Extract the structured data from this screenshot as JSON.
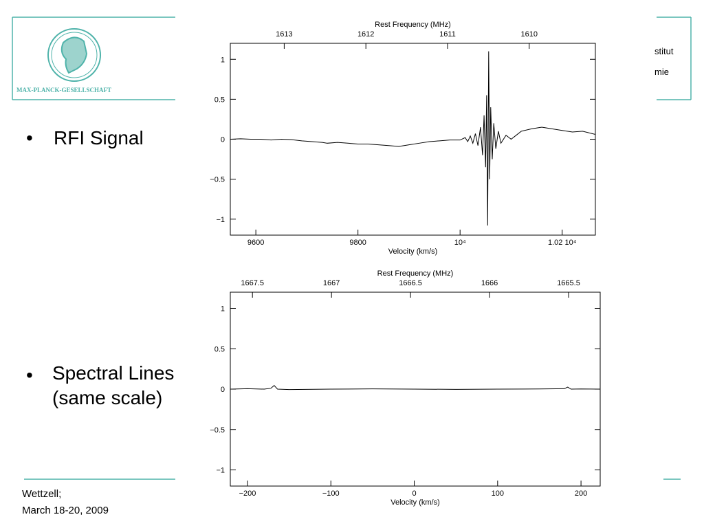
{
  "slide": {
    "logo_text": "MAX-PLANCK-GESELLSCHAFT",
    "institute_line1": "stitut",
    "institute_line2": "mie",
    "bullets": [
      "RFI Signal",
      "Spectral Lines (same scale)"
    ],
    "footer_line1": "Wettzell;",
    "footer_line2": "March 18-20, 2009"
  },
  "chart_data": [
    {
      "type": "line",
      "xlabel": "Velocity (km/s)",
      "x2label": "Rest Frequency (MHz)",
      "color": "#000000",
      "x": [
        9550,
        9570,
        9590,
        9610,
        9630,
        9650,
        9670,
        9690,
        9710,
        9730,
        9740,
        9760,
        9780,
        9800,
        9820,
        9840,
        9860,
        9880,
        9900,
        9920,
        9940,
        9960,
        9980,
        10000,
        10010,
        10015,
        10020,
        10025,
        10030,
        10035,
        10040,
        10044,
        10047,
        10050,
        10052,
        10054,
        10056,
        10058,
        10060,
        10063,
        10066,
        10070,
        10075,
        10080,
        10090,
        10100,
        10110,
        10120,
        10140,
        10160,
        10180,
        10200,
        10220,
        10240,
        10265
      ],
      "values": [
        0,
        0.005,
        0,
        0,
        -0.01,
        0,
        -0.005,
        -0.02,
        -0.03,
        -0.04,
        -0.05,
        -0.04,
        -0.05,
        -0.06,
        -0.06,
        -0.07,
        -0.08,
        -0.09,
        -0.07,
        -0.05,
        -0.03,
        -0.02,
        -0.01,
        -0.01,
        0.02,
        -0.03,
        0.04,
        -0.05,
        0.07,
        -0.08,
        0.15,
        -0.2,
        0.3,
        -0.35,
        0.55,
        -1.08,
        1.1,
        -0.5,
        0.4,
        -0.25,
        0.2,
        -0.12,
        0.1,
        -0.05,
        0.05,
        0,
        0.05,
        0.1,
        0.13,
        0.15,
        0.13,
        0.11,
        0.09,
        0.1,
        0.06
      ],
      "xlim": [
        9550,
        10265
      ],
      "xticks": [
        9600,
        9800,
        {
          "value": 10000,
          "label": "10⁴"
        },
        {
          "value": 10200,
          "label": "1.02 10⁴"
        }
      ],
      "x2lim": [
        1613.66,
        1609.19
      ],
      "x2ticks": [
        1613,
        1612,
        1611,
        1610
      ],
      "ylim": [
        -1.2,
        1.2
      ],
      "yticks": [
        {
          "value": -1,
          "label": "−1"
        },
        {
          "value": -0.5,
          "label": "−0.5"
        },
        0,
        0.5,
        1
      ]
    },
    {
      "type": "line",
      "xlabel": "Velocity (km/s)",
      "x2label": "Rest Frequency (MHz)",
      "color": "#000000",
      "x": [
        -220,
        -200,
        -180,
        -172,
        -168,
        -164,
        -150,
        -100,
        -50,
        0,
        50,
        100,
        150,
        180,
        184,
        188,
        200,
        223
      ],
      "values": [
        0,
        0.005,
        0,
        0.01,
        0.045,
        0,
        -0.005,
        0,
        0.003,
        0,
        -0.003,
        0,
        0.002,
        0.005,
        0.025,
        0,
        0.002,
        0
      ],
      "xlim": [
        -220.6,
        223
      ],
      "xticks": [
        {
          "value": -200,
          "label": "−200"
        },
        {
          "value": -100,
          "label": "−100"
        },
        0,
        100,
        200
      ],
      "x2lim": [
        1667.64,
        1665.3
      ],
      "x2ticks": [
        1667.5,
        1667,
        1666.5,
        1666,
        1665.5
      ],
      "ylim": [
        -1.2,
        1.2
      ],
      "yticks": [
        {
          "value": -1,
          "label": "−1"
        },
        {
          "value": -0.5,
          "label": "−0.5"
        },
        0,
        0.5,
        1
      ]
    }
  ]
}
